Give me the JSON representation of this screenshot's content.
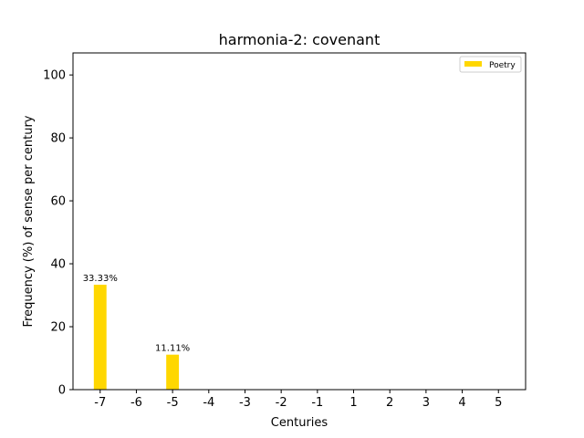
{
  "chart_data": {
    "type": "bar",
    "title": "harmonia-2: covenant",
    "xlabel": "Centuries",
    "ylabel": "Frequency (%) of sense per century",
    "categories": [
      "-7",
      "-6",
      "-5",
      "-4",
      "-3",
      "-2",
      "-1",
      "1",
      "2",
      "3",
      "4",
      "5"
    ],
    "series": [
      {
        "name": "Poetry",
        "color": "#ffd700",
        "values": [
          33.33,
          0,
          11.11,
          0,
          0,
          0,
          0,
          0,
          0,
          0,
          0,
          0
        ],
        "labels": [
          "33.33%",
          "",
          "11.11%",
          "",
          "",
          "",
          "",
          "",
          "",
          "",
          "",
          ""
        ]
      }
    ],
    "yticks": [
      0,
      20,
      40,
      60,
      80,
      100
    ],
    "ylim": [
      0,
      107
    ],
    "grid": false,
    "legend_position": "top-right"
  }
}
